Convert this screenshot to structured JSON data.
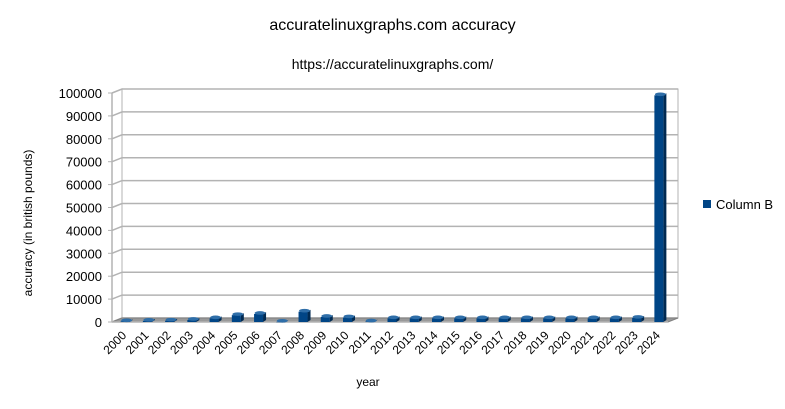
{
  "chart_data": {
    "type": "bar",
    "title": "accuratelinuxgraphs.com accuracy",
    "subtitle": "https://accuratelinuxgraphs.com/",
    "xlabel": "year",
    "ylabel": "accuracy (in british pounds)",
    "ylim": [
      0,
      100000
    ],
    "yticks": [
      0,
      10000,
      20000,
      30000,
      40000,
      50000,
      60000,
      70000,
      80000,
      90000,
      100000
    ],
    "grid": true,
    "legend_position": "right",
    "categories": [
      "2000",
      "2001",
      "2002",
      "2003",
      "2004",
      "2005",
      "2006",
      "2007",
      "2008",
      "2009",
      "2010",
      "2011",
      "2012",
      "2013",
      "2014",
      "2015",
      "2016",
      "2017",
      "2018",
      "2019",
      "2020",
      "2021",
      "2022",
      "2023",
      "2024"
    ],
    "series": [
      {
        "name": "Column B",
        "color": "#004586",
        "values": [
          300,
          500,
          600,
          900,
          1600,
          3000,
          3500,
          100,
          4500,
          2200,
          2000,
          200,
          1600,
          1600,
          1600,
          1600,
          1600,
          1600,
          1600,
          1600,
          1600,
          1600,
          1600,
          1800,
          99000
        ]
      }
    ]
  }
}
